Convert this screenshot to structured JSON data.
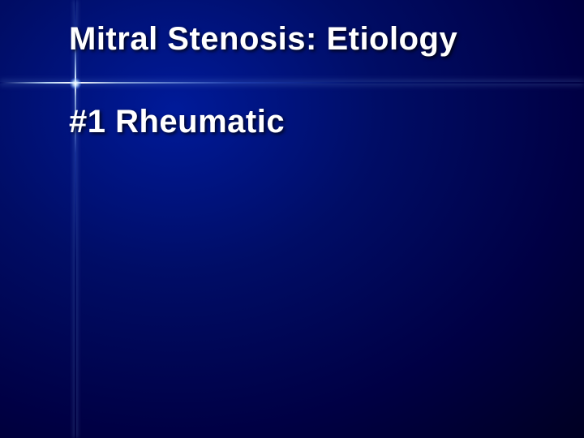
{
  "slide": {
    "title": "Mitral Stenosis:  Etiology",
    "body": "#1  Rheumatic",
    "title_color": "#ffffff",
    "body_color": "#ffffff",
    "title_fontsize": 40,
    "body_fontsize": 40,
    "background_gradient_center": "#001a99",
    "background_gradient_outer": "#000022",
    "flare_color": "#c8e6ff",
    "font_family": "Verdana, Geneva, sans-serif"
  }
}
